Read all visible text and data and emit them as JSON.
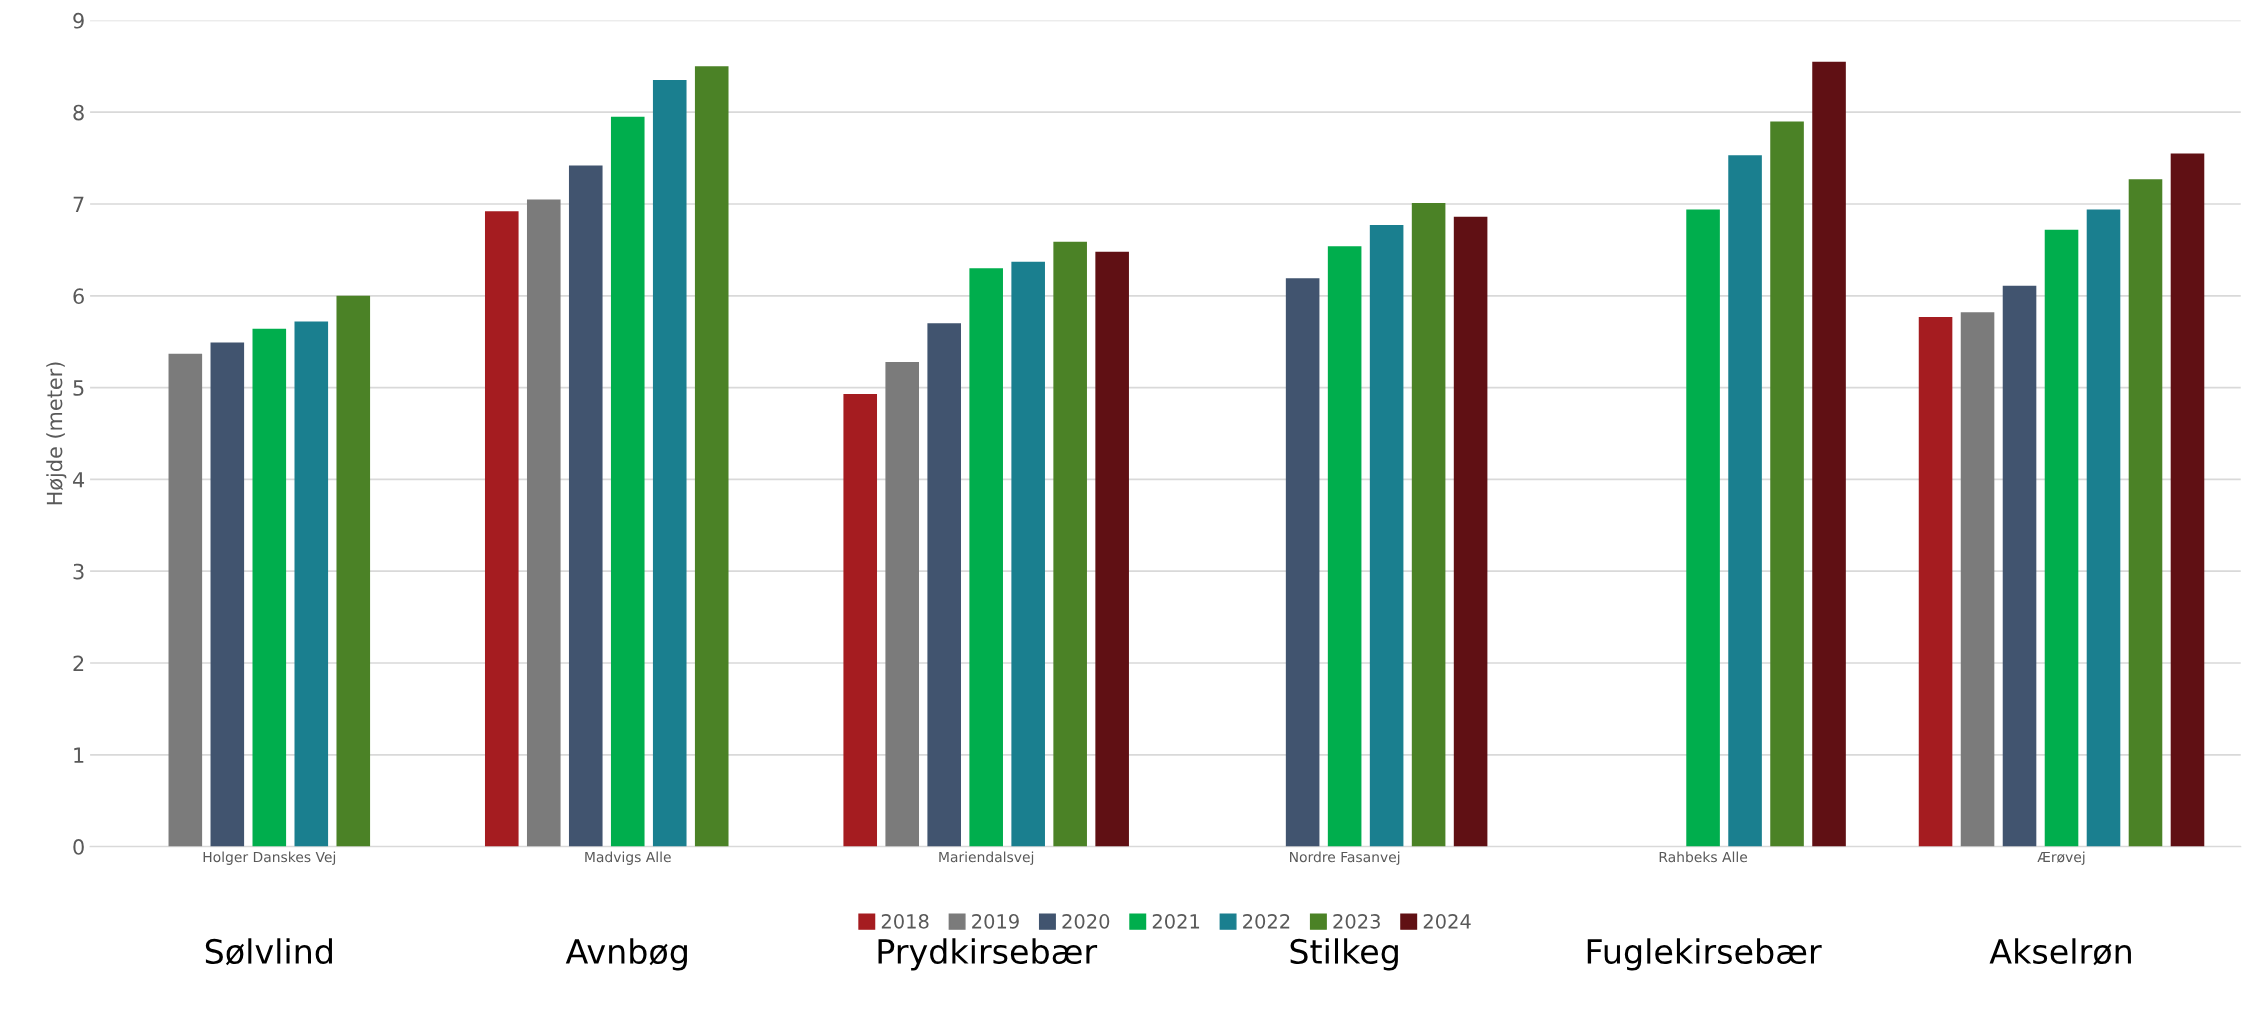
{
  "chart_data": {
    "type": "bar",
    "ylabel": "Højde (meter)",
    "categories": [
      "Holger Danskes Vej",
      "Madvigs Alle",
      "Mariendalsvej",
      "Nordre Fasanvej",
      "Rahbeks Alle",
      "Ærøvej"
    ],
    "series": [
      {
        "name": "2018",
        "color": "#a51c20",
        "values": [
          null,
          6.92,
          4.93,
          null,
          null,
          5.77
        ]
      },
      {
        "name": "2019",
        "color": "#7b7b7b",
        "values": [
          5.37,
          7.05,
          5.28,
          null,
          null,
          5.82
        ]
      },
      {
        "name": "2020",
        "color": "#41546f",
        "values": [
          5.49,
          7.42,
          5.7,
          6.19,
          null,
          6.11
        ]
      },
      {
        "name": "2021",
        "color": "#00ae4d",
        "values": [
          5.64,
          7.95,
          6.3,
          6.54,
          6.94,
          6.72
        ]
      },
      {
        "name": "2022",
        "color": "#1a7f8f",
        "values": [
          5.72,
          8.35,
          6.37,
          6.77,
          7.53,
          6.94
        ]
      },
      {
        "name": "2023",
        "color": "#4b8226",
        "values": [
          6.0,
          8.5,
          6.59,
          7.01,
          7.9,
          7.27
        ]
      },
      {
        "name": "2024",
        "color": "#601014",
        "values": [
          null,
          null,
          6.48,
          6.86,
          8.55,
          7.55
        ]
      }
    ],
    "ylim": [
      0,
      9
    ],
    "yticks": [
      0,
      1,
      2,
      3,
      4,
      5,
      6,
      7,
      8,
      9
    ],
    "grid": "y",
    "legend": "bottom",
    "annotations": [
      "Sølvlind",
      "Avnbøg",
      "Prydkirsebær",
      "Stilkeg",
      "Fuglekirsebær",
      "Akselrøn"
    ]
  }
}
